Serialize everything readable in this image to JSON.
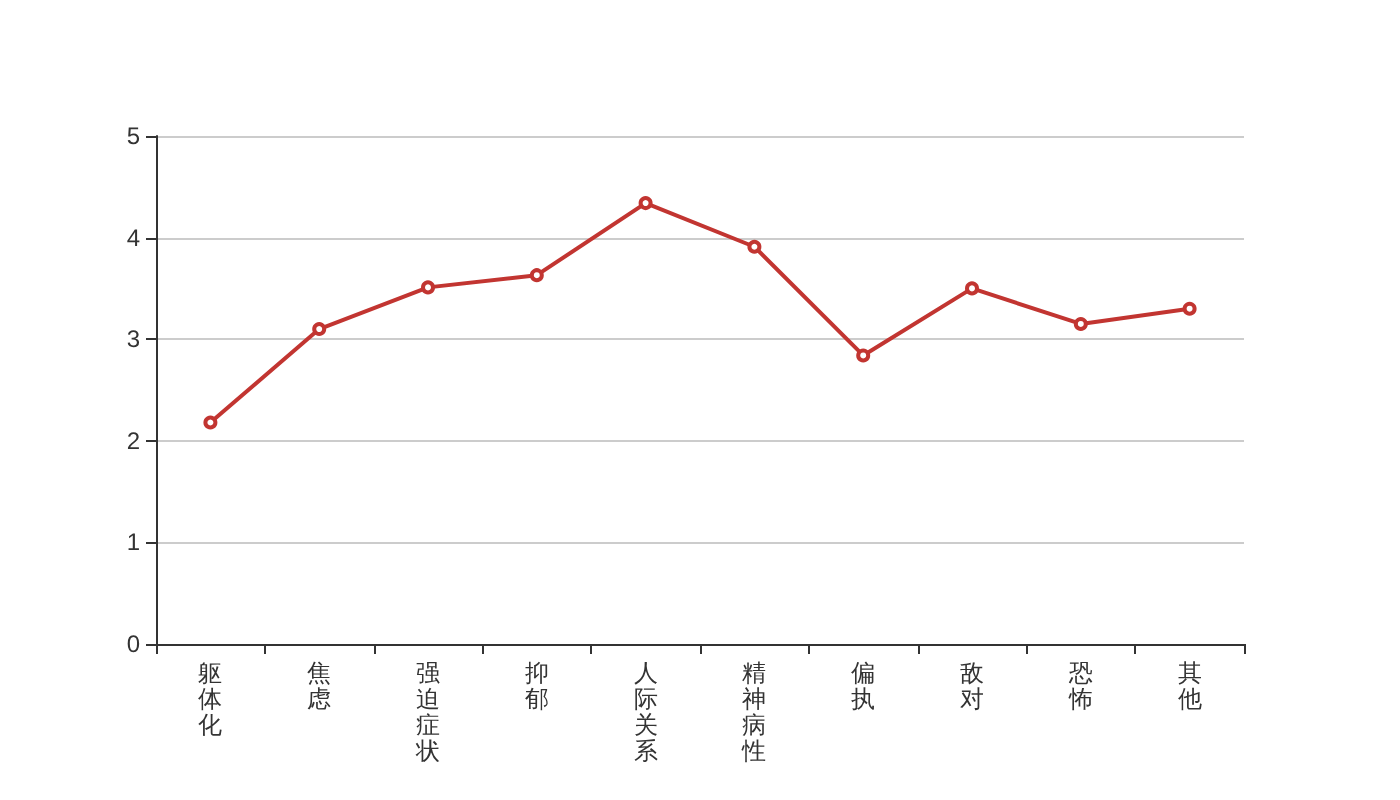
{
  "chart_data": {
    "type": "line",
    "categories": [
      "躯体化",
      "焦虑",
      "强迫症状",
      "抑郁",
      "人际关系",
      "精神病性",
      "偏执",
      "敌对",
      "恐怖",
      "其他"
    ],
    "values": [
      2.18,
      3.1,
      3.51,
      3.63,
      4.34,
      3.91,
      2.84,
      3.5,
      3.15,
      3.3
    ],
    "color": "#c23531",
    "ylim": [
      0,
      5
    ],
    "yticks": [
      0,
      1,
      2,
      3,
      4,
      5
    ],
    "grid": "y",
    "marker": "circle",
    "line_style": "solid"
  }
}
